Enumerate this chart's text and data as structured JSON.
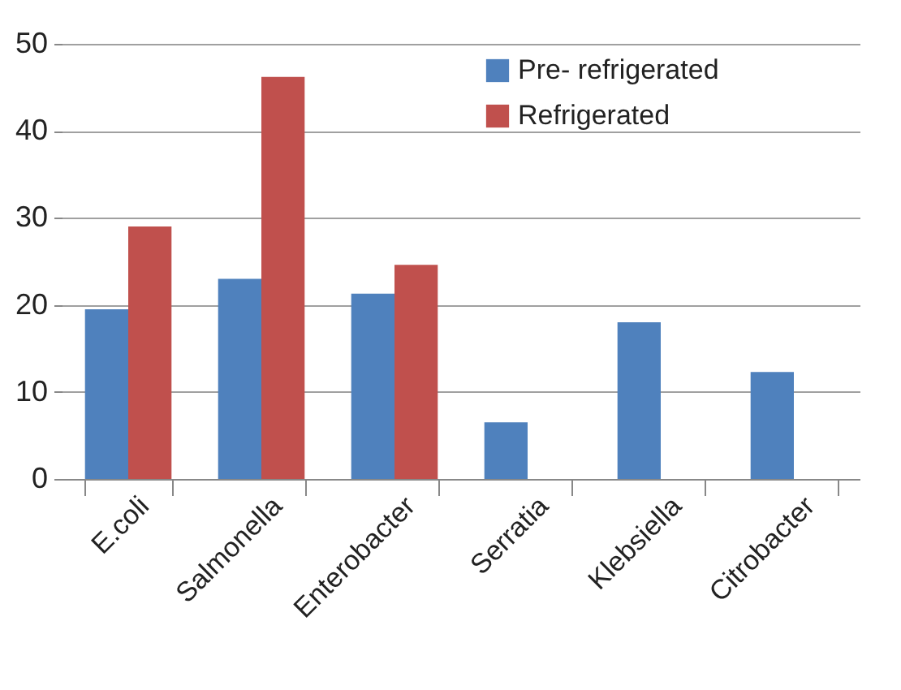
{
  "chart_data": {
    "type": "bar",
    "categories": [
      "E.coli",
      "Salmonella",
      "Enterobacter",
      "Serratia",
      "Klebsiella",
      "Citrobacter"
    ],
    "series": [
      {
        "name": "Pre- refrigerated",
        "color": "#4f81bd",
        "values": [
          19.5,
          23.0,
          21.3,
          6.5,
          18.0,
          12.3
        ]
      },
      {
        "name": "Refrigerated",
        "color": "#c0504d",
        "values": [
          29.0,
          46.2,
          24.6,
          null,
          null,
          null
        ]
      }
    ],
    "ylim": [
      0,
      50
    ],
    "yticks": [
      0,
      10,
      20,
      30,
      40,
      50
    ],
    "grid": "y",
    "legend": "top right"
  }
}
